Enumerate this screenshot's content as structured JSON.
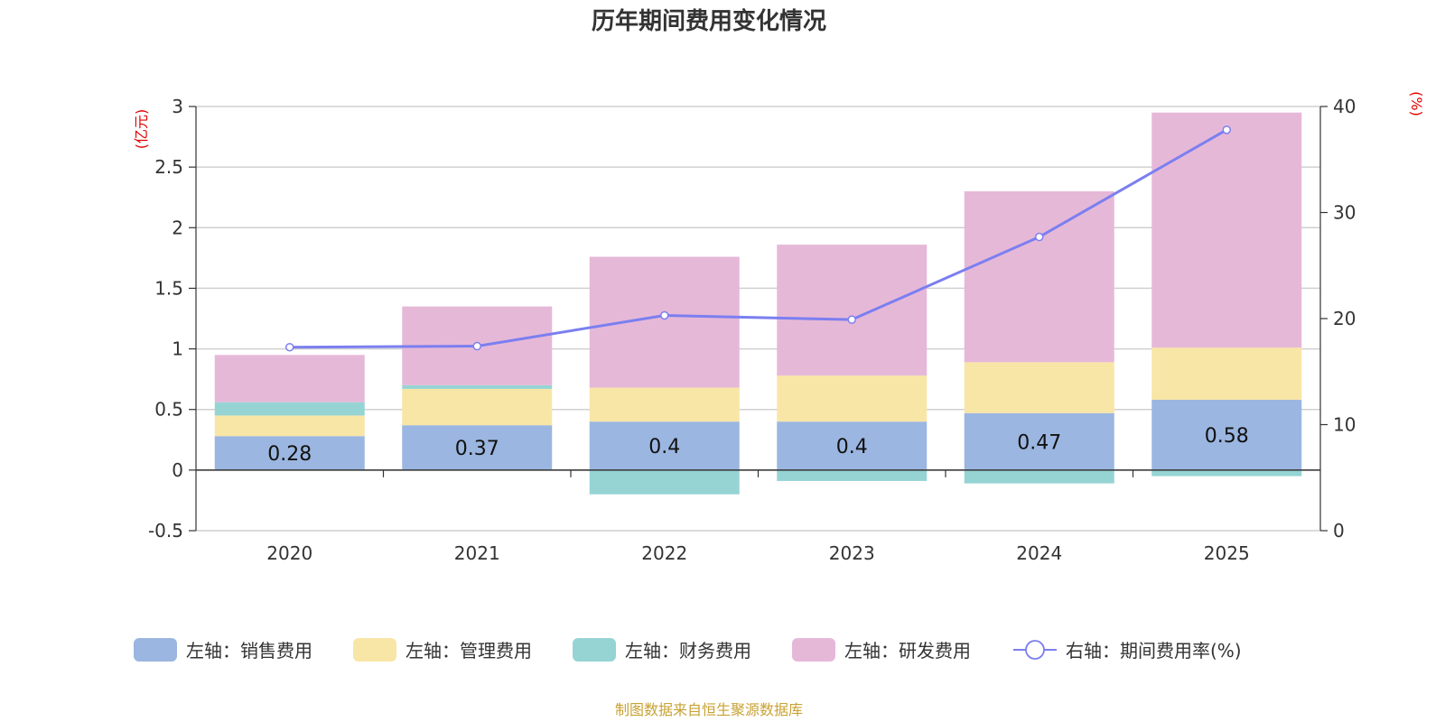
{
  "chart_data": {
    "type": "bar",
    "stacked": true,
    "title": "历年期间费用变化情况",
    "left_unit": "(亿元)",
    "right_unit": "(%)",
    "categories": [
      "2020",
      "2021",
      "2022",
      "2023",
      "2024",
      "2025"
    ],
    "left_axis": {
      "min": -0.5,
      "max": 3,
      "ticks": [
        "3",
        "2.5",
        "2",
        "1.5",
        "1",
        "0.5",
        "0",
        "-0.5"
      ],
      "tick_values": [
        3,
        2.5,
        2,
        1.5,
        1,
        0.5,
        0,
        -0.5
      ]
    },
    "right_axis": {
      "min": 0,
      "max": 40,
      "ticks": [
        "40",
        "30",
        "20",
        "10",
        "0"
      ],
      "tick_values": [
        40,
        30,
        20,
        10,
        0
      ]
    },
    "series": [
      {
        "name": "左轴：销售费用",
        "color": "#9bb6e0",
        "values": [
          0.28,
          0.37,
          0.4,
          0.4,
          0.47,
          0.58
        ],
        "labels": [
          "0.28",
          "0.37",
          "0.4",
          "0.4",
          "0.47",
          "0.58"
        ]
      },
      {
        "name": "左轴：管理费用",
        "color": "#f8e6a6",
        "values": [
          0.17,
          0.3,
          0.28,
          0.38,
          0.42,
          0.43
        ]
      },
      {
        "name": "左轴：财务费用",
        "color": "#96d4d4",
        "values": [
          0.11,
          0.03,
          -0.2,
          -0.09,
          -0.11,
          -0.05
        ]
      },
      {
        "name": "左轴：研发费用",
        "color": "#e6b8d8",
        "values": [
          0.39,
          0.65,
          1.08,
          1.08,
          1.41,
          1.94
        ]
      }
    ],
    "line": {
      "name": "右轴：期间费用率(%)",
      "color": "#7b7ff0",
      "axis": "right",
      "values": [
        17.3,
        17.4,
        20.3,
        19.9,
        27.7,
        37.8
      ]
    },
    "source": "制图数据来自恒生聚源数据库"
  }
}
